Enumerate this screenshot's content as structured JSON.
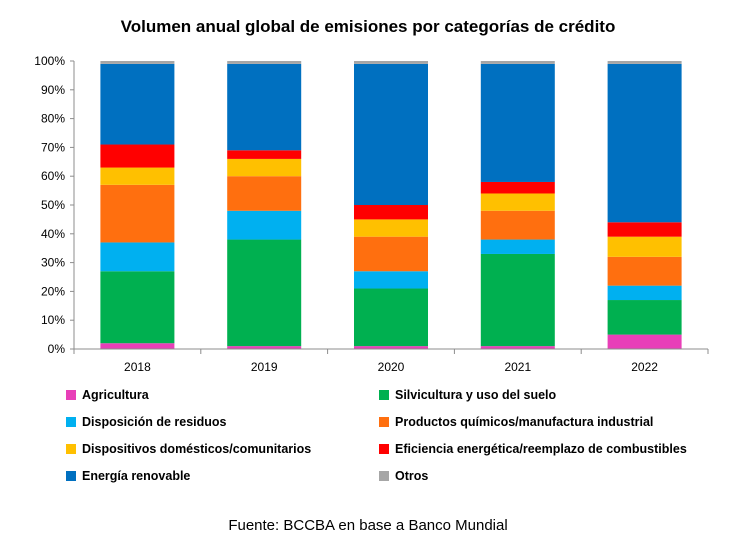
{
  "chart_data": {
    "type": "bar",
    "stacked": true,
    "title": "Volumen anual global de emisiones por categorías de crédito",
    "categories": [
      "2018",
      "2019",
      "2020",
      "2021",
      "2022"
    ],
    "ylim": [
      0,
      100
    ],
    "yticks": [
      "0%",
      "10%",
      "20%",
      "30%",
      "40%",
      "50%",
      "60%",
      "70%",
      "80%",
      "90%",
      "100%"
    ],
    "grid": false,
    "legend_position": "bottom",
    "series": [
      {
        "name": "Agricultura",
        "color": "#E83FB8",
        "values": [
          2,
          1,
          1,
          1,
          5
        ]
      },
      {
        "name": "Silvicultura y uso del suelo",
        "color": "#00B050",
        "values": [
          25,
          37,
          20,
          32,
          12
        ]
      },
      {
        "name": "Disposición de residuos",
        "color": "#00B0F0",
        "values": [
          10,
          10,
          6,
          5,
          5
        ]
      },
      {
        "name": "Productos químicos/manufactura industrial",
        "color": "#FF6F0F",
        "values": [
          20,
          12,
          12,
          10,
          10
        ]
      },
      {
        "name": "Dispositivos domésticos/comunitarios",
        "color": "#FFC000",
        "values": [
          6,
          6,
          6,
          6,
          7
        ]
      },
      {
        "name": "Eficiencia energética/reemplazo de combustibles",
        "color": "#FF0000",
        "values": [
          8,
          3,
          5,
          4,
          5
        ]
      },
      {
        "name": "Energía renovable",
        "color": "#0070C0",
        "values": [
          28,
          30,
          49,
          41,
          55
        ]
      },
      {
        "name": "Otros",
        "color": "#A6A6A6",
        "values": [
          1,
          1,
          1,
          1,
          1
        ]
      }
    ]
  },
  "source": "Fuente: BCCBA en base a Banco Mundial"
}
